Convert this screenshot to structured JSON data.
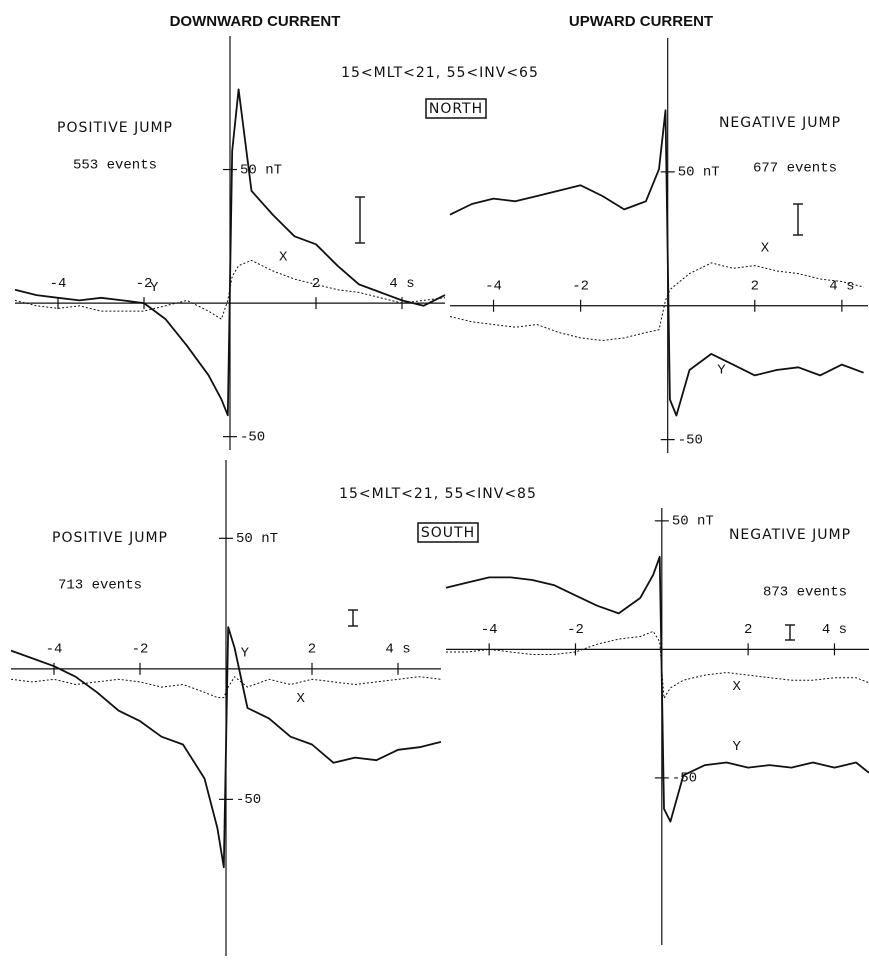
{
  "columns": [
    "DOWNWARD CURRENT",
    "UPWARD CURRENT"
  ],
  "rows": [
    {
      "condition": "15<MLT<21, 55<INV<65",
      "hemisphere": "NORTH"
    },
    {
      "condition": "15<MLT<21, 55<INV<85",
      "hemisphere": "SOUTH"
    }
  ],
  "chart_data": [
    {
      "type": "line",
      "title": "POSITIVE JUMP",
      "subtitle": "553 events",
      "x": [
        -5,
        -4.5,
        -4,
        -3.5,
        -3,
        -2.5,
        -2,
        -1.5,
        -1,
        -0.5,
        -0.2,
        -0.05,
        0.05,
        0.2,
        0.5,
        1,
        1.5,
        2,
        2.5,
        3,
        3.5,
        4,
        4.5,
        5
      ],
      "xlim": [
        -5,
        5
      ],
      "ylim": [
        -55,
        100
      ],
      "xticks": [
        -4,
        -2,
        2,
        {
          "value": 4,
          "label": "4 s"
        }
      ],
      "yticks": [
        {
          "value": 50,
          "label": "50 nT"
        },
        -50
      ],
      "series": [
        {
          "name": "Y",
          "color": "#111111",
          "style": "solid",
          "values": [
            5,
            3,
            2,
            1,
            2,
            1,
            0,
            -6,
            -16,
            -27,
            -36,
            -42,
            57,
            80,
            42,
            33,
            25,
            22,
            14,
            7,
            4,
            1,
            -1,
            3
          ]
        },
        {
          "name": "X",
          "color": "#111111",
          "style": "dotted",
          "values": [
            1,
            -1,
            -2,
            -1,
            -3,
            -3,
            -3,
            -1,
            1,
            -3,
            -6,
            1,
            10,
            14,
            16,
            12,
            9,
            7,
            5,
            4,
            2,
            0,
            1,
            2
          ]
        }
      ]
    },
    {
      "type": "line",
      "title": "NEGATIVE JUMP",
      "subtitle": "677 events",
      "x": [
        -5,
        -4.5,
        -4,
        -3.5,
        -3,
        -2.5,
        -2,
        -1.5,
        -1,
        -0.5,
        -0.2,
        -0.05,
        0.05,
        0.2,
        0.5,
        1,
        1.5,
        2,
        2.5,
        3,
        3.5,
        4,
        4.5
      ],
      "xlim": [
        -5,
        4.6
      ],
      "ylim": [
        -55,
        100
      ],
      "xticks": [
        -4,
        -2,
        2,
        {
          "value": 4,
          "label": "4 s"
        }
      ],
      "yticks": [
        {
          "value": 50,
          "label": "50 nT"
        },
        -50
      ],
      "series": [
        {
          "name": "Y",
          "color": "#111111",
          "style": "solid",
          "values": [
            34,
            38,
            40,
            39,
            41,
            43,
            45,
            41,
            36,
            39,
            51,
            73,
            -35,
            -41,
            -24,
            -18,
            -22,
            -26,
            -24,
            -23,
            -26,
            -22,
            -25
          ]
        },
        {
          "name": "X",
          "color": "#111111",
          "style": "dotted",
          "values": [
            -4,
            -6,
            -7,
            -8,
            -7,
            -10,
            -12,
            -13,
            -12,
            -10,
            -9,
            2,
            6,
            8,
            12,
            16,
            14,
            15,
            13,
            12,
            10,
            9,
            7
          ]
        }
      ]
    },
    {
      "type": "line",
      "title": "POSITIVE JUMP",
      "subtitle": "713 events",
      "x": [
        -5,
        -4.5,
        -4,
        -3.5,
        -3,
        -2.5,
        -2,
        -1.5,
        -1,
        -0.5,
        -0.2,
        -0.05,
        0.05,
        0.2,
        0.5,
        1,
        1.5,
        2,
        2.5,
        3,
        3.5,
        4,
        4.5,
        5
      ],
      "xlim": [
        -5,
        5
      ],
      "ylim": [
        -110,
        80
      ],
      "xticks": [
        -4,
        -2,
        2,
        {
          "value": 4,
          "label": "4 s"
        }
      ],
      "yticks": [
        {
          "value": 50,
          "label": "50 nT"
        },
        -50
      ],
      "series": [
        {
          "name": "Y",
          "color": "#111111",
          "style": "solid",
          "values": [
            7,
            4,
            1,
            -3,
            -9,
            -16,
            -20,
            -26,
            -29,
            -42,
            -61,
            -76,
            16,
            8,
            -15,
            -19,
            -26,
            -29,
            -36,
            -34,
            -35,
            -31,
            -30,
            -28
          ]
        },
        {
          "name": "X",
          "color": "#111111",
          "style": "dotted",
          "values": [
            -4,
            -5,
            -4,
            -6,
            -5,
            -4,
            -5,
            -7,
            -6,
            -9,
            -11,
            -11,
            -7,
            -3,
            -7,
            -4,
            -6,
            -4,
            -5,
            -6,
            -5,
            -4,
            -3,
            -4
          ]
        }
      ]
    },
    {
      "type": "line",
      "title": "NEGATIVE JUMP",
      "subtitle": "873 events",
      "x": [
        -5,
        -4.5,
        -4,
        -3.5,
        -3,
        -2.5,
        -2,
        -1.5,
        -1,
        -0.5,
        -0.2,
        -0.05,
        0.05,
        0.2,
        0.5,
        1,
        1.5,
        2,
        2.5,
        3,
        3.5,
        4,
        4.5,
        4.8
      ],
      "xlim": [
        -5,
        4.8
      ],
      "ylim": [
        -115,
        55
      ],
      "xticks": [
        -4,
        -2,
        2,
        {
          "value": 4,
          "label": "4 s"
        }
      ],
      "yticks": [
        {
          "value": 50,
          "label": "50 nT"
        },
        -50
      ],
      "series": [
        {
          "name": "Y",
          "color": "#111111",
          "style": "solid",
          "values": [
            24,
            26,
            28,
            28,
            27,
            25,
            21,
            17,
            14,
            20,
            29,
            36,
            -62,
            -67,
            -49,
            -45,
            -44,
            -46,
            -45,
            -46,
            -44,
            -46,
            -44,
            -48
          ]
        },
        {
          "name": "X",
          "color": "#111111",
          "style": "dotted",
          "values": [
            -1,
            -1,
            0,
            -1,
            -2,
            -2,
            -1,
            2,
            4,
            5,
            7,
            3,
            -19,
            -15,
            -12,
            -10,
            -9,
            -10,
            -11,
            -12,
            -12,
            -11,
            -11,
            -13
          ]
        }
      ]
    }
  ]
}
